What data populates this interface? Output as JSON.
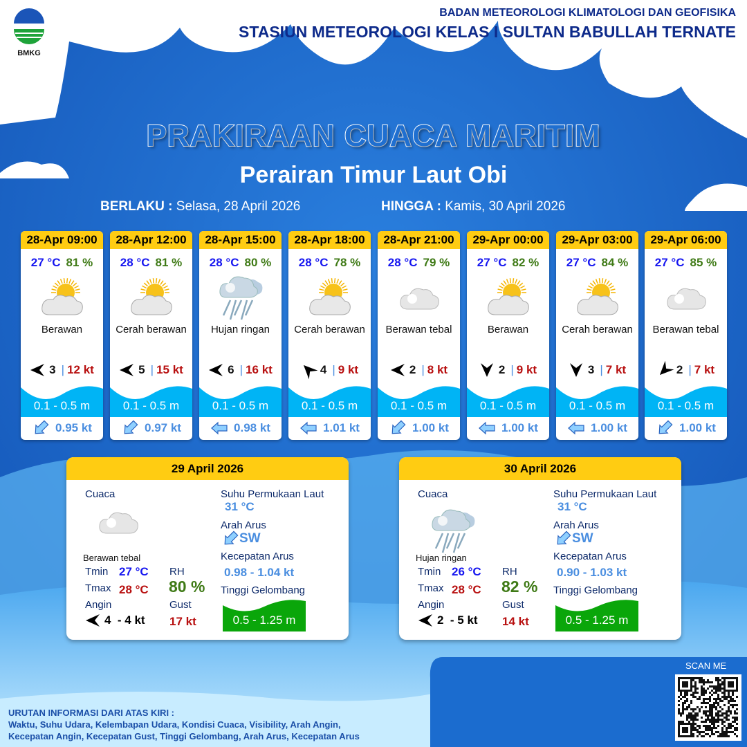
{
  "header": {
    "agency": "BADAN METEOROLOGI KLIMATOLOGI DAN GEOFISIKA",
    "station": "STASIUN METEOROLOGI KELAS I SULTAN BABULLAH TERNATE",
    "logo_text": "BMKG"
  },
  "title": "PRAKIRAAN CUACA MARITIM",
  "subtitle": "Perairan Timur Laut Obi",
  "validity": {
    "from_label": "BERLAKU :",
    "from": "Selasa, 28 April 2026",
    "to_label": "HINGGA :",
    "to": "Kamis, 30 April 2026"
  },
  "forecasts": [
    {
      "time": "28-Apr 09:00",
      "temp": "27 °C",
      "rh": "81 %",
      "icon": "sun-cloud-icon",
      "cond": "Berawan",
      "wind_arrow": "W",
      "wind": "3",
      "gust": "12 kt",
      "wave": "0.1 - 0.5 m",
      "current_arrow": "SW",
      "current": "0.95 kt"
    },
    {
      "time": "28-Apr 12:00",
      "temp": "28 °C",
      "rh": "81 %",
      "icon": "sun-cloud-icon",
      "cond": "Cerah berawan",
      "wind_arrow": "W",
      "wind": "5",
      "gust": "15 kt",
      "wave": "0.1 - 0.5 m",
      "current_arrow": "SW",
      "current": "0.97 kt"
    },
    {
      "time": "28-Apr 15:00",
      "temp": "28 °C",
      "rh": "80 %",
      "icon": "rain-cloud-icon",
      "cond": "Hujan ringan",
      "wind_arrow": "W",
      "wind": "6",
      "gust": "16 kt",
      "wave": "0.1 - 0.5 m",
      "current_arrow": "W",
      "current": "0.98 kt"
    },
    {
      "time": "28-Apr 18:00",
      "temp": "28 °C",
      "rh": "78 %",
      "icon": "sun-cloud-icon",
      "cond": "Cerah berawan",
      "wind_arrow": "NW",
      "wind": "4",
      "gust": "9 kt",
      "wave": "0.1 - 0.5 m",
      "current_arrow": "W",
      "current": "1.01 kt"
    },
    {
      "time": "28-Apr 21:00",
      "temp": "28 °C",
      "rh": "79 %",
      "icon": "cloud-icon",
      "cond": "Berawan tebal",
      "wind_arrow": "W",
      "wind": "2",
      "gust": "8 kt",
      "wave": "0.1 - 0.5 m",
      "current_arrow": "SW",
      "current": "1.00 kt"
    },
    {
      "time": "29-Apr 00:00",
      "temp": "27 °C",
      "rh": "82 %",
      "icon": "sun-cloud-icon",
      "cond": "Berawan",
      "wind_arrow": "S",
      "wind": "2",
      "gust": "9 kt",
      "wave": "0.1 - 0.5 m",
      "current_arrow": "W",
      "current": "1.00 kt"
    },
    {
      "time": "29-Apr 03:00",
      "temp": "27 °C",
      "rh": "84 %",
      "icon": "sun-cloud-icon",
      "cond": "Cerah berawan",
      "wind_arrow": "S",
      "wind": "3",
      "gust": "7 kt",
      "wave": "0.1 - 0.5 m",
      "current_arrow": "W",
      "current": "1.00 kt"
    },
    {
      "time": "29-Apr 06:00",
      "temp": "27 °C",
      "rh": "85 %",
      "icon": "cloud-icon",
      "cond": "Berawan tebal",
      "wind_arrow": "SW",
      "wind": "2",
      "gust": "7 kt",
      "wave": "0.1 - 0.5 m",
      "current_arrow": "SW",
      "current": "1.00 kt"
    }
  ],
  "labels": {
    "cuaca": "Cuaca",
    "tmin": "Tmin",
    "tmax": "Tmax",
    "angin": "Angin",
    "rh": "RH",
    "gust": "Gust",
    "sst": "Suhu Permukaan Laut",
    "arah_arus": "Arah Arus",
    "kec_arus": "Kecepatan Arus",
    "tinggi": "Tinggi Gelombang"
  },
  "daily": [
    {
      "date": "29 April 2026",
      "icon": "cloud-icon",
      "cond": "Berawan tebal",
      "tmin": "27 °C",
      "tmax": "28 °C",
      "rh": "80 %",
      "wind_arrow": "W",
      "wind": "4  - 4 kt",
      "gust": "17 kt",
      "sst": "31 °C",
      "current_dir": "SW",
      "current_speed": "0.98 - 1.04 kt",
      "wave": "0.5 - 1.25 m"
    },
    {
      "date": "30 April 2026",
      "icon": "rain-cloud-icon",
      "cond": "Hujan ringan",
      "tmin": "26 °C",
      "tmax": "28 °C",
      "rh": "82 %",
      "wind_arrow": "W",
      "wind": "2  - 5 kt",
      "gust": "14 kt",
      "sst": "31 °C",
      "current_dir": "SW",
      "current_speed": "0.90 - 1.03 kt",
      "wave": "0.5 - 1.25 m"
    }
  ],
  "footer": {
    "heading": "URUTAN INFORMASI DARI ATAS KIRI :",
    "line1": "Waktu, Suhu Udara, Kelembapan Udara, Kondisi Cuaca, Visibility, Arah Angin,",
    "line2": "Kecepatan Angin, Kecepatan Gust, Tinggi Gelombang, Arah Arus, Kecepatan Arus",
    "scan": "SCAN ME"
  },
  "colors": {
    "header_yellow": "#ffcc12",
    "wave_blue": "#00b4f5",
    "wave_green": "#0aa60a",
    "temp_blue": "#1616f0",
    "rh_green": "#3f7a16",
    "gust_red": "#b81010"
  }
}
